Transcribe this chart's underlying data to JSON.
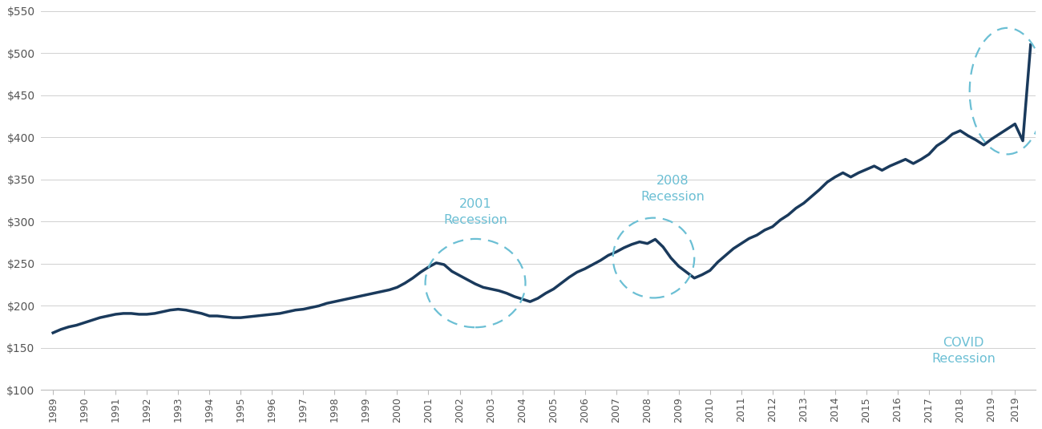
{
  "line_color": "#1a3a5c",
  "line_width": 2.5,
  "background_color": "#ffffff",
  "grid_color": "#d0d0d0",
  "annotation_color": "#6bbfd4",
  "ylim": [
    100,
    550
  ],
  "yticks": [
    100,
    150,
    200,
    250,
    300,
    350,
    400,
    450,
    500,
    550
  ],
  "ytick_labels": [
    "$100",
    "$150",
    "$200",
    "$250",
    "$300",
    "$350",
    "$400",
    "$450",
    "$500",
    "$550"
  ],
  "quarterly_values": [
    168,
    172,
    175,
    177,
    180,
    183,
    186,
    188,
    190,
    191,
    191,
    190,
    190,
    191,
    193,
    195,
    196,
    195,
    193,
    191,
    188,
    188,
    187,
    186,
    186,
    187,
    188,
    189,
    190,
    191,
    193,
    195,
    196,
    198,
    200,
    203,
    205,
    207,
    209,
    211,
    213,
    215,
    217,
    219,
    222,
    227,
    233,
    240,
    246,
    251,
    249,
    241,
    236,
    231,
    226,
    222,
    220,
    218,
    215,
    211,
    208,
    205,
    209,
    215,
    220,
    227,
    234,
    240,
    244,
    249,
    254,
    260,
    264,
    269,
    273,
    276,
    274,
    279,
    270,
    257,
    247,
    240,
    233,
    237,
    242,
    252,
    260,
    268,
    274,
    280,
    284,
    290,
    294,
    302,
    308,
    316,
    322,
    330,
    338,
    347,
    353,
    358,
    353,
    358,
    362,
    366,
    361,
    366,
    370,
    374,
    369,
    374,
    380,
    390,
    396,
    404,
    408,
    402,
    397,
    391,
    398,
    404,
    410,
    416,
    396,
    510
  ]
}
